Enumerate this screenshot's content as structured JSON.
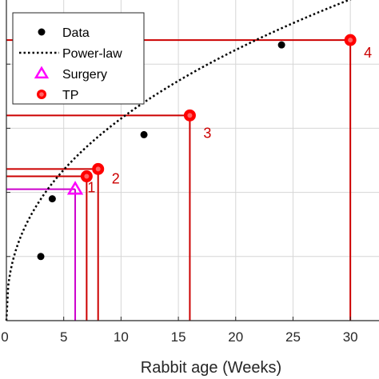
{
  "chart_data": {
    "type": "scatter",
    "xlabel": "Rabbit age (Weeks)",
    "xlim": [
      0,
      32.5
    ],
    "xticks": [
      0,
      5,
      10,
      15,
      20,
      25,
      30
    ],
    "ylim": [
      0,
      100
    ],
    "grid": true,
    "legend": {
      "placement": "top-left",
      "entries": [
        "Data",
        "Power-law",
        "Surgery",
        "TP"
      ]
    },
    "colors": {
      "data": "#000000",
      "fit": "#000000",
      "surgery": "#ff00ff",
      "tp": "#ff0000",
      "tp_lines": "#cc0000",
      "surgery_lines": "#cc00cc"
    },
    "series": [
      {
        "name": "Data",
        "points": [
          {
            "x": 3,
            "y": 20
          },
          {
            "x": 4,
            "y": 38
          },
          {
            "x": 12,
            "y": 58
          },
          {
            "x": 24,
            "y": 86
          }
        ]
      },
      {
        "name": "Power-law",
        "a": 23.85,
        "b": 0.422,
        "x_range": [
          0,
          32.5
        ]
      },
      {
        "name": "Surgery",
        "points": [
          {
            "x": 6,
            "y": 41
          }
        ]
      },
      {
        "name": "TP",
        "points": [
          {
            "x": 7,
            "y": 45,
            "label": "1"
          },
          {
            "x": 8,
            "y": 47.3,
            "label": "2"
          },
          {
            "x": 16,
            "y": 64,
            "label": "3"
          },
          {
            "x": 30,
            "y": 87.5,
            "label": "4"
          }
        ]
      }
    ]
  }
}
